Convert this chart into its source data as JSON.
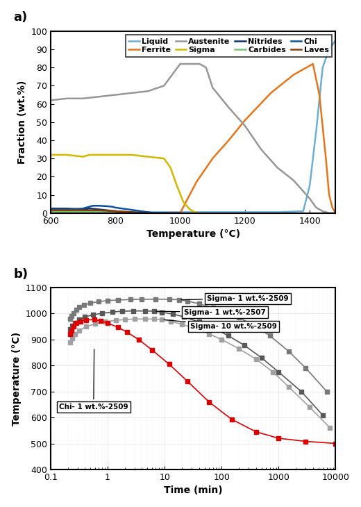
{
  "panel_a": {
    "xlabel": "Temperature (°C)",
    "ylabel": "Fraction (wt.%)",
    "xlim": [
      600,
      1480
    ],
    "ylim": [
      0,
      100
    ],
    "xticks": [
      600,
      800,
      1000,
      1200,
      1400
    ],
    "yticks": [
      0,
      10,
      20,
      30,
      40,
      50,
      60,
      70,
      80,
      90,
      100
    ],
    "series": {
      "Liquid": {
        "color": "#6baed6",
        "lw": 1.8,
        "x": [
          600,
          700,
          800,
          900,
          1000,
          1100,
          1200,
          1300,
          1380,
          1400,
          1420,
          1440,
          1460,
          1480
        ],
        "y": [
          0.5,
          0.5,
          0.5,
          0.5,
          0.5,
          0.5,
          0.5,
          0.5,
          1,
          15,
          45,
          80,
          90,
          95
        ]
      },
      "Ferrite": {
        "color": "#e6751a",
        "lw": 1.8,
        "x": [
          600,
          700,
          800,
          900,
          1000,
          1050,
          1100,
          1150,
          1200,
          1280,
          1350,
          1390,
          1410,
          1430,
          1450,
          1460,
          1470,
          1480
        ],
        "y": [
          0,
          0,
          0,
          0,
          0,
          17,
          30,
          40,
          51,
          66,
          76,
          80,
          82,
          65,
          30,
          10,
          3,
          0
        ]
      },
      "Austenite": {
        "color": "#969696",
        "lw": 1.8,
        "x": [
          600,
          650,
          700,
          750,
          800,
          850,
          900,
          950,
          1000,
          1020,
          1040,
          1060,
          1080,
          1100,
          1150,
          1200,
          1250,
          1300,
          1350,
          1380,
          1400,
          1420,
          1440,
          1460,
          1480
        ],
        "y": [
          62,
          63,
          63,
          64,
          65,
          66,
          67,
          70,
          82,
          82,
          82,
          82,
          80,
          69,
          58,
          48,
          35,
          25,
          18,
          12,
          8,
          3,
          1,
          0,
          0
        ]
      },
      "Sigma": {
        "color": "#d4b800",
        "lw": 1.8,
        "x": [
          600,
          650,
          700,
          720,
          750,
          800,
          850,
          900,
          950,
          970,
          990,
          1010,
          1030,
          1050,
          1060
        ],
        "y": [
          32,
          32,
          31,
          32,
          32,
          32,
          32,
          31,
          30,
          25,
          15,
          6,
          2,
          0,
          0
        ]
      },
      "Nitrides": {
        "color": "#08306b",
        "lw": 1.8,
        "x": [
          600,
          650,
          700,
          720,
          750,
          800,
          850,
          900,
          950,
          1000
        ],
        "y": [
          2.5,
          2.5,
          2,
          2.5,
          2,
          1,
          0.5,
          0,
          0,
          0
        ]
      },
      "Carbides": {
        "color": "#74c476",
        "lw": 1.8,
        "x": [
          600,
          650,
          700,
          720,
          750,
          770,
          800
        ],
        "y": [
          0.8,
          0.8,
          0.8,
          0.8,
          0.5,
          0.2,
          0
        ]
      },
      "Chi": {
        "color": "#08519c",
        "lw": 1.8,
        "x": [
          600,
          650,
          700,
          720,
          730,
          750,
          770,
          790,
          800,
          820,
          840,
          860,
          880,
          900,
          920,
          940,
          960
        ],
        "y": [
          2,
          2,
          2.5,
          3.5,
          4,
          4,
          3.8,
          3.5,
          3,
          2.5,
          2,
          1.5,
          1,
          0.5,
          0,
          0,
          0
        ]
      },
      "Laves": {
        "color": "#8c3d08",
        "lw": 1.8,
        "x": [
          600,
          650,
          700,
          750,
          800,
          820,
          840,
          860,
          880,
          900
        ],
        "y": [
          1.5,
          1.5,
          1.5,
          1.5,
          1,
          0.8,
          0.5,
          0.2,
          0,
          0
        ]
      }
    },
    "legend_order": [
      "Liquid",
      "Ferrite",
      "Austenite",
      "Sigma",
      "Nitrides",
      "Carbides",
      "Chi",
      "Laves"
    ]
  },
  "panel_b": {
    "xlabel": "Time (min)",
    "ylabel": "Temperature (°C)",
    "xlim_log": [
      -1,
      4
    ],
    "ylim": [
      400,
      1100
    ],
    "yticks": [
      400,
      500,
      600,
      700,
      800,
      900,
      1000,
      1100
    ],
    "series": {
      "Sigma- 1 wt.%-2509": {
        "color": "#787878",
        "marker": "s",
        "markersize": 4,
        "lw": 1.2,
        "left_x": [
          0.22,
          0.23,
          0.25,
          0.28,
          0.32,
          0.38,
          0.5,
          0.7,
          1.0,
          1.5,
          2.5,
          4.0,
          7.0,
          12.0,
          18.0
        ],
        "left_y": [
          980,
          990,
          1000,
          1015,
          1025,
          1033,
          1040,
          1046,
          1050,
          1052,
          1054,
          1055,
          1055,
          1055,
          1053
        ],
        "right_x": [
          18.0,
          25.0,
          40.0,
          70.0,
          120.0,
          200.0,
          400.0,
          700.0,
          1500.0,
          3000.0,
          7000.0
        ],
        "right_y": [
          1053,
          1048,
          1038,
          1022,
          1005,
          985,
          950,
          915,
          855,
          790,
          700
        ]
      },
      "Sigma- 1 wt.%-2507": {
        "color": "#585858",
        "marker": "s",
        "markersize": 4,
        "lw": 1.2,
        "left_x": [
          0.22,
          0.24,
          0.27,
          0.32,
          0.4,
          0.55,
          0.8,
          1.2,
          1.8,
          2.8,
          4.5,
          6.5
        ],
        "left_y": [
          940,
          952,
          965,
          977,
          987,
          995,
          1001,
          1006,
          1009,
          1010,
          1010,
          1009
        ],
        "right_x": [
          6.5,
          9.0,
          14.0,
          22.0,
          40.0,
          70.0,
          130.0,
          250.0,
          500.0,
          1000.0,
          2500.0,
          6000.0
        ],
        "right_y": [
          1009,
          1005,
          998,
          987,
          968,
          946,
          915,
          878,
          830,
          775,
          700,
          608
        ]
      },
      "Sigma- 10 wt.%-2509": {
        "color": "#a0a0a0",
        "marker": "s",
        "markersize": 4,
        "lw": 1.2,
        "left_x": [
          0.22,
          0.24,
          0.27,
          0.32,
          0.42,
          0.6,
          0.9,
          1.4,
          2.0,
          3.0,
          4.5,
          6.5,
          9.0
        ],
        "left_y": [
          890,
          905,
          920,
          935,
          950,
          960,
          968,
          974,
          977,
          979,
          979,
          979,
          977
        ],
        "right_x": [
          9.0,
          13.0,
          20.0,
          35.0,
          60.0,
          100.0,
          200.0,
          400.0,
          800.0,
          1500.0,
          3500.0,
          8000.0
        ],
        "right_y": [
          977,
          970,
          959,
          942,
          922,
          900,
          865,
          825,
          775,
          718,
          640,
          560
        ]
      },
      "Chi- 1 wt.%-2509": {
        "color": "#dd0000",
        "marker": "s",
        "markersize": 4,
        "lw": 1.2,
        "left_x": [
          0.22,
          0.23,
          0.25,
          0.28,
          0.33,
          0.42,
          0.58
        ],
        "left_y": [
          920,
          935,
          950,
          963,
          970,
          975,
          977
        ],
        "right_x": [
          0.58,
          0.75,
          1.0,
          1.5,
          2.2,
          3.5,
          6.0,
          12.0,
          25.0,
          60.0,
          150.0,
          400.0,
          1000.0,
          3000.0,
          10000.0
        ],
        "right_y": [
          977,
          972,
          963,
          948,
          928,
          900,
          860,
          805,
          740,
          660,
          593,
          545,
          520,
          508,
          500
        ]
      }
    }
  }
}
